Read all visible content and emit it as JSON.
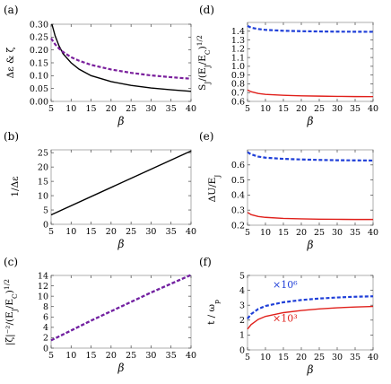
{
  "colors": {
    "black": "#000000",
    "purple": "#7a1f9c",
    "blue": "#1f3fd8",
    "red": "#e0201b",
    "frame": "#9a9a9a"
  },
  "chart_data": [
    {
      "id": "a",
      "panel_label": "(a)",
      "type": "line",
      "xlabel": "β",
      "ylabel": "Δε & ζ",
      "xlim": [
        5,
        40
      ],
      "ylim": [
        0,
        0.3
      ],
      "xticks": [
        "5",
        "10",
        "15",
        "20",
        "25",
        "30",
        "35",
        "40"
      ],
      "yticks": [
        "0.00",
        "0.05",
        "0.10",
        "0.15",
        "0.20",
        "0.25",
        "0.30"
      ],
      "series": [
        {
          "color": "black",
          "dash": "solid",
          "x": [
            5.2,
            6,
            7,
            8,
            10,
            12,
            15,
            20,
            25,
            30,
            35,
            40
          ],
          "y": [
            0.3,
            0.255,
            0.215,
            0.185,
            0.15,
            0.125,
            0.1,
            0.077,
            0.062,
            0.052,
            0.045,
            0.039
          ]
        },
        {
          "color": "purple",
          "dash": "dashed",
          "x": [
            5,
            6,
            7,
            8,
            10,
            12,
            15,
            20,
            25,
            30,
            35,
            40
          ],
          "y": [
            0.245,
            0.222,
            0.205,
            0.192,
            0.172,
            0.158,
            0.142,
            0.124,
            0.111,
            0.101,
            0.094,
            0.088
          ]
        }
      ]
    },
    {
      "id": "b",
      "panel_label": "(b)",
      "type": "line",
      "xlabel": "β",
      "ylabel": "1/Δε",
      "xlim": [
        5,
        40
      ],
      "ylim": [
        0,
        26
      ],
      "xticks": [
        "5",
        "10",
        "15",
        "20",
        "25",
        "30",
        "35",
        "40"
      ],
      "yticks": [
        "0",
        "5",
        "10",
        "15",
        "20",
        "25"
      ],
      "series": [
        {
          "color": "black",
          "dash": "solid",
          "x": [
            5,
            40
          ],
          "y": [
            3.3,
            25.6
          ]
        }
      ]
    },
    {
      "id": "c",
      "panel_label": "(c)",
      "type": "line",
      "xlabel": "β",
      "ylabel": "|ζ|⁻²/(E_J/E_C)^{1/2}",
      "xlim": [
        5,
        40
      ],
      "ylim": [
        0,
        14
      ],
      "xticks": [
        "5",
        "10",
        "15",
        "20",
        "25",
        "30",
        "35",
        "40"
      ],
      "yticks": [
        "0",
        "2",
        "4",
        "6",
        "8",
        "10",
        "12",
        "14"
      ],
      "series": [
        {
          "color": "blue",
          "dash": "dashed",
          "x": [
            5,
            10,
            15,
            20,
            25,
            30,
            35,
            40
          ],
          "y": [
            1.5,
            3.4,
            5.3,
            7.1,
            8.9,
            10.7,
            12.4,
            14.1
          ]
        },
        {
          "color": "purple",
          "dash": "dashed",
          "x": [
            5,
            10,
            15,
            20,
            25,
            30,
            35,
            40
          ],
          "y": [
            1.5,
            3.4,
            5.3,
            7.1,
            8.9,
            10.7,
            12.4,
            14.1
          ]
        }
      ]
    },
    {
      "id": "d",
      "panel_label": "(d)",
      "type": "line",
      "xlabel": "β",
      "ylabel": "S_J/(E_J/E_C)^{1/2}",
      "xlim": [
        5,
        40
      ],
      "ylim": [
        0.6,
        1.5
      ],
      "xticks": [
        "5",
        "10",
        "15",
        "20",
        "25",
        "30",
        "35",
        "40"
      ],
      "yticks": [
        "0.6",
        "0.7",
        "0.8",
        "0.9",
        "1.0",
        "1.1",
        "1.2",
        "1.3",
        "1.4"
      ],
      "series": [
        {
          "color": "blue",
          "dash": "dashed",
          "x": [
            5,
            6,
            8,
            10,
            15,
            20,
            25,
            30,
            35,
            40
          ],
          "y": [
            1.46,
            1.44,
            1.425,
            1.415,
            1.405,
            1.4,
            1.397,
            1.395,
            1.394,
            1.393
          ]
        },
        {
          "color": "red",
          "dash": "solid",
          "x": [
            5,
            6,
            8,
            10,
            15,
            20,
            25,
            30,
            35,
            40
          ],
          "y": [
            0.73,
            0.71,
            0.69,
            0.68,
            0.67,
            0.663,
            0.66,
            0.657,
            0.655,
            0.654
          ]
        }
      ]
    },
    {
      "id": "e",
      "panel_label": "(e)",
      "type": "line",
      "xlabel": "β",
      "ylabel": "ΔU/E_J",
      "xlim": [
        5,
        40
      ],
      "ylim": [
        0.2,
        0.7
      ],
      "xticks": [
        "5",
        "10",
        "15",
        "20",
        "25",
        "30",
        "35",
        "40"
      ],
      "yticks": [
        "0.2",
        "0.3",
        "0.4",
        "0.5",
        "0.6"
      ],
      "series": [
        {
          "color": "blue",
          "dash": "dashed",
          "x": [
            5,
            6,
            8,
            10,
            15,
            20,
            25,
            30,
            35,
            40
          ],
          "y": [
            0.685,
            0.67,
            0.655,
            0.648,
            0.64,
            0.636,
            0.633,
            0.631,
            0.63,
            0.629
          ]
        },
        {
          "color": "red",
          "dash": "solid",
          "x": [
            5,
            6,
            8,
            10,
            15,
            20,
            25,
            30,
            35,
            40
          ],
          "y": [
            0.285,
            0.27,
            0.258,
            0.252,
            0.245,
            0.242,
            0.24,
            0.239,
            0.238,
            0.238
          ]
        }
      ]
    },
    {
      "id": "f",
      "panel_label": "(f)",
      "type": "line",
      "xlabel": "β",
      "ylabel": "t / ω_p",
      "xlim": [
        5,
        40
      ],
      "ylim": [
        0,
        5
      ],
      "xticks": [
        "5",
        "10",
        "15",
        "20",
        "25",
        "30",
        "35",
        "40"
      ],
      "yticks": [
        "0",
        "1",
        "2",
        "3",
        "4",
        "5"
      ],
      "annotations": [
        {
          "text": "×10⁶",
          "x": 12,
          "y": 4.15,
          "color": "blue"
        },
        {
          "text": "×10³",
          "x": 12,
          "y": 1.9,
          "color": "red"
        }
      ],
      "series": [
        {
          "color": "blue",
          "dash": "dashed",
          "x": [
            5,
            6,
            8,
            10,
            15,
            20,
            25,
            30,
            35,
            40
          ],
          "y": [
            2.1,
            2.4,
            2.75,
            2.95,
            3.2,
            3.35,
            3.45,
            3.52,
            3.57,
            3.6
          ]
        },
        {
          "color": "red",
          "dash": "solid",
          "x": [
            5,
            6,
            8,
            10,
            15,
            20,
            25,
            30,
            35,
            40
          ],
          "y": [
            1.4,
            1.7,
            2.05,
            2.25,
            2.5,
            2.65,
            2.75,
            2.83,
            2.88,
            2.92
          ]
        }
      ]
    }
  ]
}
